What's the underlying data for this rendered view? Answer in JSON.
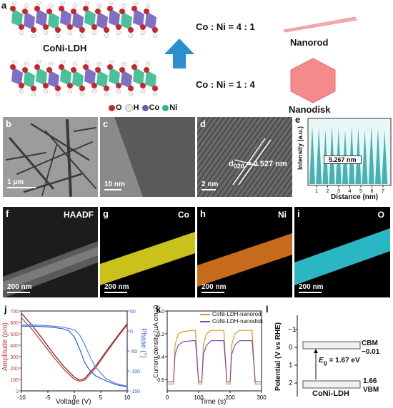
{
  "panel_a": {
    "label": "a",
    "material": "CoNi-LDH",
    "ratio_top": "Co : Ni = 4 : 1",
    "ratio_bottom": "Co : Ni = 1 : 4",
    "shape_top": "Nanorod",
    "shape_bottom": "Nanodisk",
    "legend": [
      {
        "sym": "O",
        "color": "#c9262b"
      },
      {
        "sym": "H",
        "color": "#e6e6e6"
      },
      {
        "sym": "Co",
        "color": "#6a56b8"
      },
      {
        "sym": "Ni",
        "color": "#2bb58a"
      }
    ]
  },
  "panel_b": {
    "label": "b",
    "scale": "1 µm"
  },
  "panel_c": {
    "label": "c",
    "scale": "10 nm"
  },
  "panel_d": {
    "label": "d",
    "scale": "2 nm",
    "annotation_d": "d",
    "annotation_sub": "020",
    "annotation_val": " = 0.527 nm"
  },
  "panel_e": {
    "label": "e",
    "ylabel": "Intensity (a.u.)",
    "xlabel": "Distance (nm)",
    "box": "5.267 nm",
    "ticks": [
      "1",
      "2",
      "3",
      "4",
      "5",
      "6",
      "7"
    ]
  },
  "panel_f": {
    "label": "f",
    "corner": "HAADF",
    "scale": "200 nm"
  },
  "panel_g": {
    "label": "g",
    "corner": "Co",
    "scale": "200 nm"
  },
  "panel_h": {
    "label": "h",
    "corner": "Ni",
    "scale": "200 nm"
  },
  "panel_i": {
    "label": "i",
    "corner": "O",
    "scale": "200 nm"
  },
  "panel_l": {
    "label": "l",
    "ylabel": "Potential (V vs RHE)",
    "yticks": [
      "−1",
      "0",
      "1",
      "2"
    ],
    "cbm_name": "CBM",
    "cbm_val": "−0.01",
    "vbm_val": "1.66",
    "vbm_name": "VBM",
    "eg_symbol": "E",
    "eg_sub": "g",
    "eg_value": " = 1.67 eV",
    "material": "CoNi-LDH"
  },
  "chart_data": [
    {
      "id": "j",
      "label": "j",
      "type": "line",
      "xlabel": "Voltage (V)",
      "ylabel": "Amplitude (pm)",
      "y2label": "Phase (°)",
      "xlim": [
        -10,
        10
      ],
      "ylim": [
        0,
        700
      ],
      "y2lim": [
        -150,
        50
      ],
      "xticks": [
        "-10",
        "-5",
        "0",
        "5",
        "10"
      ],
      "yticks": [
        "0",
        "100",
        "200",
        "300",
        "400",
        "500",
        "600",
        "700"
      ],
      "y2ticks": [
        "50",
        "0",
        "-50",
        "-100",
        "-150"
      ],
      "series": [
        {
          "axis": "left",
          "color": "#c0392b",
          "x": [
            -10,
            -8,
            -6,
            -4,
            -2,
            0,
            1,
            2,
            4,
            6,
            8,
            10
          ],
          "y": [
            640,
            540,
            420,
            300,
            190,
            100,
            85,
            95,
            200,
            330,
            460,
            580
          ]
        },
        {
          "axis": "left",
          "color": "#7a2020",
          "x": [
            -10,
            -8,
            -6,
            -4,
            -2,
            0,
            1,
            2,
            4,
            6,
            8,
            10
          ],
          "y": [
            680,
            575,
            455,
            330,
            215,
            120,
            95,
            110,
            215,
            345,
            470,
            590
          ]
        },
        {
          "axis": "right",
          "color": "#2f5fd0",
          "x": [
            -10,
            -8,
            -6,
            -4,
            -2,
            -1,
            0,
            1,
            2,
            3,
            4,
            6,
            8,
            10
          ],
          "y": [
            12,
            12,
            11,
            9,
            5,
            0,
            -15,
            -45,
            -80,
            -100,
            -112,
            -125,
            -135,
            -140
          ]
        },
        {
          "axis": "right",
          "color": "#5a84e8",
          "x": [
            -10,
            -8,
            -6,
            -4,
            -2,
            0,
            1,
            2,
            3,
            4,
            5,
            6,
            8,
            10
          ],
          "y": [
            15,
            15,
            14,
            12,
            9,
            3,
            -10,
            -35,
            -65,
            -90,
            -105,
            -120,
            -132,
            -138
          ]
        }
      ]
    },
    {
      "id": "k",
      "label": "k",
      "type": "line",
      "xlabel": "Time (s)",
      "ylabel": "Current density (µA cm⁻²)",
      "xlim": [
        0,
        300
      ],
      "ylim": [
        -0.7,
        0
      ],
      "xticks": [
        "0",
        "100",
        "200",
        "300"
      ],
      "yticks": [
        "0.0",
        "-0.2",
        "-0.4",
        "-0.6"
      ],
      "legend": [
        "CoNi-LDH-nanorod",
        "CoNi-LDH-nanodisk"
      ],
      "series": [
        {
          "name": "CoNi-LDH-nanorod",
          "color": "#d99a1e",
          "x": [
            0,
            20,
            25,
            35,
            50,
            80,
            90,
            100,
            110,
            115,
            125,
            140,
            170,
            180,
            190,
            200,
            205,
            215,
            230,
            260,
            270,
            280,
            300
          ],
          "y": [
            -0.64,
            -0.64,
            -0.3,
            -0.2,
            -0.18,
            -0.17,
            -0.17,
            -0.64,
            -0.64,
            -0.3,
            -0.2,
            -0.17,
            -0.17,
            -0.17,
            -0.64,
            -0.64,
            -0.3,
            -0.2,
            -0.17,
            -0.17,
            -0.17,
            -0.64,
            -0.64
          ]
        },
        {
          "name": "CoNi-LDH-nanodisk",
          "color": "#7a4fb5",
          "x": [
            0,
            20,
            25,
            35,
            50,
            80,
            90,
            100,
            110,
            115,
            125,
            140,
            170,
            180,
            190,
            200,
            205,
            215,
            230,
            260,
            270,
            280,
            300
          ],
          "y": [
            -0.62,
            -0.62,
            -0.38,
            -0.3,
            -0.27,
            -0.26,
            -0.26,
            -0.62,
            -0.62,
            -0.38,
            -0.3,
            -0.26,
            -0.26,
            -0.26,
            -0.62,
            -0.62,
            -0.38,
            -0.3,
            -0.26,
            -0.26,
            -0.26,
            -0.62,
            -0.62
          ]
        }
      ]
    }
  ]
}
